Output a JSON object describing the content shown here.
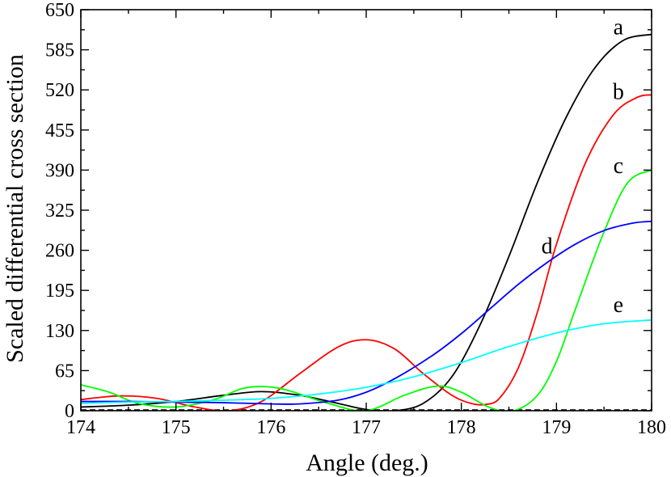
{
  "chart_data": {
    "type": "line",
    "xlabel": "Angle (deg.)",
    "ylabel": "Scaled differential cross section",
    "xlim": [
      174,
      180
    ],
    "ylim": [
      0,
      650
    ],
    "xticks": [
      174,
      175,
      176,
      177,
      178,
      179,
      180
    ],
    "yticks": [
      0,
      65,
      130,
      195,
      260,
      325,
      390,
      455,
      520,
      585,
      650
    ],
    "grid": false,
    "series": [
      {
        "name": "a",
        "color": "#000000",
        "x": [
          174,
          174.5,
          175,
          175.5,
          175.9,
          176.3,
          176.7,
          177,
          177.3,
          177.6,
          177.9,
          178.2,
          178.5,
          178.8,
          179.1,
          179.4,
          179.7,
          180
        ],
        "y": [
          6,
          9,
          15,
          25,
          31,
          25,
          12,
          2,
          0,
          12,
          55,
          140,
          250,
          370,
          475,
          555,
          600,
          610
        ]
      },
      {
        "name": "b",
        "color": "#ff0000",
        "x": [
          174,
          174.4,
          174.8,
          175.2,
          175.55,
          175.9,
          176.3,
          176.7,
          177.0,
          177.3,
          177.6,
          177.9,
          178.1,
          178.25,
          178.4,
          178.6,
          178.8,
          179.0,
          179.3,
          179.6,
          179.85,
          180
        ],
        "y": [
          18,
          24,
          20,
          6,
          0,
          15,
          60,
          103,
          115,
          100,
          60,
          25,
          12,
          10,
          20,
          70,
          160,
          270,
          400,
          480,
          508,
          512
        ]
      },
      {
        "name": "c",
        "color": "#00ff00",
        "x": [
          174,
          174.3,
          174.6,
          175.0,
          175.4,
          175.7,
          175.95,
          176.2,
          176.6,
          177.0,
          177.4,
          177.75,
          178.0,
          178.3,
          178.55,
          178.8,
          179.0,
          179.2,
          179.5,
          179.75,
          180
        ],
        "y": [
          42,
          30,
          12,
          6,
          18,
          36,
          39,
          32,
          12,
          0,
          25,
          40,
          30,
          5,
          0,
          25,
          80,
          165,
          290,
          370,
          390
        ]
      },
      {
        "name": "d",
        "color": "#0000ff",
        "x": [
          174,
          174.5,
          175,
          175.5,
          176,
          176.3,
          176.7,
          177,
          177.3,
          177.7,
          178,
          178.3,
          178.6,
          178.9,
          179.2,
          179.5,
          179.8,
          180
        ],
        "y": [
          15,
          15,
          14,
          13,
          11,
          11,
          17,
          30,
          52,
          90,
          125,
          165,
          205,
          240,
          270,
          292,
          304,
          307
        ]
      },
      {
        "name": "e",
        "color": "#00ffff",
        "x": [
          174,
          174.5,
          175,
          175.5,
          176,
          176.5,
          177,
          177.5,
          178,
          178.5,
          179,
          179.5,
          180
        ],
        "y": [
          12,
          14,
          15,
          17,
          20,
          27,
          38,
          55,
          78,
          104,
          126,
          141,
          147
        ]
      }
    ],
    "baseline": {
      "style": "dashed",
      "color": "#000000",
      "y": 0
    },
    "curve_labels": [
      {
        "text": "a",
        "x": 179.65,
        "y": 610
      },
      {
        "text": "b",
        "x": 179.65,
        "y": 505
      },
      {
        "text": "c",
        "x": 179.65,
        "y": 385
      },
      {
        "text": "d",
        "x": 178.9,
        "y": 255
      },
      {
        "text": "e",
        "x": 179.65,
        "y": 160
      }
    ]
  }
}
